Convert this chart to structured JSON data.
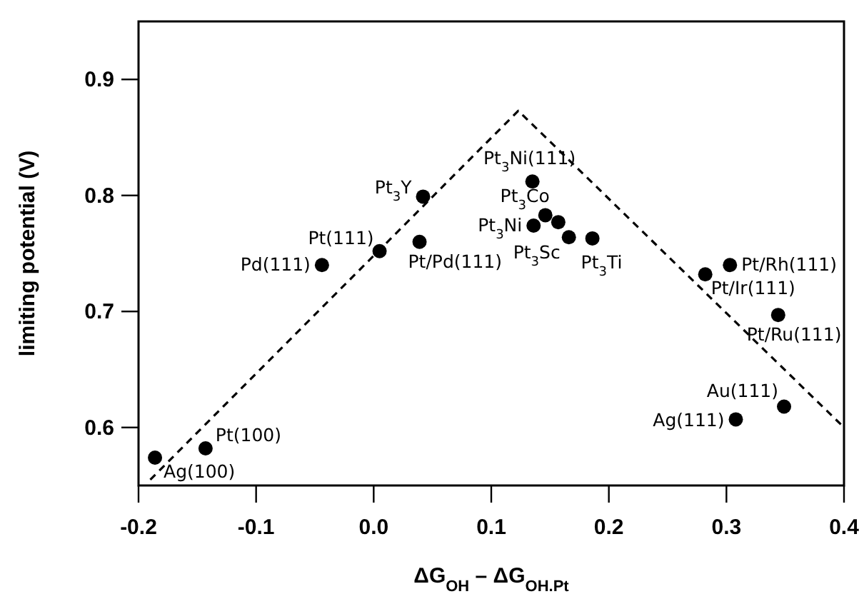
{
  "chart_data": {
    "type": "scatter",
    "xlabel": "ΔG$_{OH}$ – ΔG$_{OH.Pt}$",
    "ylabel": "limiting potential (V)",
    "xlim": [
      -0.2,
      0.4
    ],
    "ylim": [
      0.55,
      0.95
    ],
    "xticks": [
      -0.2,
      -0.1,
      {
        "value": 0,
        "label": "0.0"
      },
      0.1,
      0.2,
      0.3,
      0.4
    ],
    "yticks": [
      0.6,
      0.7,
      0.8,
      0.9
    ],
    "grid": false,
    "series": [
      {
        "type": "line",
        "color": "#000000",
        "line_style": "dashed",
        "marker": "none",
        "x": [
          -0.19,
          0.123,
          0.4
        ],
        "values": [
          0.555,
          0.873,
          0.6
        ]
      },
      {
        "color": "#000000",
        "marker": "circle",
        "x": [
          0.135,
          0.042,
          0.005,
          0.039,
          0.146,
          0.157,
          0.136,
          0.166,
          0.186,
          -0.044,
          0.303,
          0.282,
          0.344,
          0.349,
          0.308,
          -0.143,
          -0.186
        ],
        "values": [
          0.812,
          0.799,
          0.752,
          0.76,
          0.783,
          0.777,
          0.774,
          0.764,
          0.763,
          0.74,
          0.74,
          0.732,
          0.697,
          0.618,
          0.607,
          0.582,
          0.574
        ]
      }
    ],
    "annotations": [
      {
        "text": "Pt$_{3}$Ni(111)",
        "x": 0.135,
        "y": 0.812
      },
      {
        "text": "Pt$_{3}$Y",
        "x": 0.042,
        "y": 0.799
      },
      {
        "text": "Pt(111)",
        "x": 0.005,
        "y": 0.752
      },
      {
        "text": "Pt/Pd(111)",
        "x": 0.039,
        "y": 0.76
      },
      {
        "text": "Pt$_{3}$Co",
        "x": 0.146,
        "y": 0.783
      },
      {
        "text": "Pt$_{3}$Ni",
        "x": 0.136,
        "y": 0.774
      },
      {
        "text": "Pt$_{3}$Sc",
        "x": 0.166,
        "y": 0.764
      },
      {
        "text": "Pt$_{3}$Ti",
        "x": 0.186,
        "y": 0.763
      },
      {
        "text": "Pd(111)",
        "x": -0.044,
        "y": 0.74
      },
      {
        "text": "Pt/Rh(111)",
        "x": 0.303,
        "y": 0.74
      },
      {
        "text": "Pt/Ir(111)",
        "x": 0.282,
        "y": 0.732
      },
      {
        "text": "Pt/Ru(111)",
        "x": 0.344,
        "y": 0.697
      },
      {
        "text": "Au(111)",
        "x": 0.349,
        "y": 0.618
      },
      {
        "text": "Ag(111)",
        "x": 0.308,
        "y": 0.607
      },
      {
        "text": "Pt(100)",
        "x": -0.143,
        "y": 0.582
      },
      {
        "text": "Ag(100)",
        "x": -0.186,
        "y": 0.574
      }
    ]
  }
}
